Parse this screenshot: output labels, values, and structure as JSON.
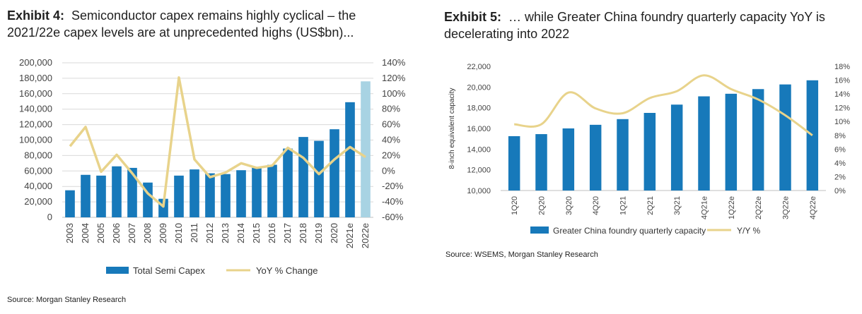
{
  "exhibit4": {
    "label": "Exhibit 4:",
    "title_line1": "Semiconductor capex remains highly cyclical – the",
    "title_line2": "2021/22e capex levels are at unprecedented highs (US$bn)...",
    "source": "Source: Morgan Stanley Research"
  },
  "exhibit5": {
    "label": "Exhibit 5:",
    "title_line1": "… while Greater China foundry quarterly capacity YoY is",
    "title_line2": "decelerating into 2022",
    "source": "Source: WSEMS, Morgan Stanley Research"
  },
  "colors": {
    "bar": "#1779ba",
    "bar_estimate": "#a8d3e3",
    "line": "#e8d38b",
    "grid": "#d9d9d9"
  },
  "chart_data": [
    {
      "type": "bar",
      "categories": [
        "2003",
        "2004",
        "2005",
        "2006",
        "2007",
        "2008",
        "2009",
        "2010",
        "2011",
        "2012",
        "2013",
        "2014",
        "2015",
        "2016",
        "2017",
        "2018",
        "2019",
        "2020",
        "2021e",
        "2022e"
      ],
      "series": [
        {
          "name": "Total Semi Capex",
          "axis": "left",
          "values": [
            35000,
            55000,
            54000,
            66000,
            64000,
            45000,
            24000,
            54000,
            62000,
            57000,
            56000,
            61000,
            64000,
            68000,
            89000,
            104000,
            99000,
            114000,
            149000,
            176000
          ]
        },
        {
          "name": "YoY % Change",
          "type": "line",
          "axis": "right",
          "values": [
            32,
            57,
            -1,
            21,
            -3,
            -29,
            -46,
            121,
            15,
            -8,
            -2,
            10,
            4,
            7,
            30,
            17,
            -4,
            15,
            31,
            18
          ]
        }
      ],
      "ylim_left": [
        0,
        200000
      ],
      "yticks_left": [
        "0",
        "20,000",
        "40,000",
        "60,000",
        "80,000",
        "100,000",
        "120,000",
        "140,000",
        "160,000",
        "180,000",
        "200,000"
      ],
      "ylim_right": [
        -60,
        140
      ],
      "yticks_right": [
        "-60%",
        "-40%",
        "-20%",
        "0%",
        "20%",
        "40%",
        "60%",
        "80%",
        "100%",
        "120%",
        "140%"
      ],
      "grid": true,
      "legend_position": "bottom"
    },
    {
      "type": "bar",
      "categories": [
        "1Q20",
        "2Q20",
        "3Q20",
        "4Q20",
        "1Q21",
        "2Q21",
        "3Q21",
        "4Q21e",
        "1Q22e",
        "2Q22e",
        "3Q22e",
        "4Q22e"
      ],
      "series": [
        {
          "name": "Greater China foundry quarterly capacity",
          "axis": "left",
          "values": [
            15250,
            15450,
            16000,
            16350,
            16900,
            17500,
            18300,
            19100,
            19350,
            19800,
            20250,
            20650
          ]
        },
        {
          "name": "Y/Y %",
          "type": "line",
          "axis": "right",
          "values": [
            9.6,
            9.6,
            14.2,
            11.9,
            11.2,
            13.4,
            14.4,
            16.7,
            14.7,
            13.2,
            10.9,
            8.0
          ]
        }
      ],
      "ylabel": "8-inch equivalent capacity",
      "ylim_left": [
        10000,
        22000
      ],
      "yticks_left": [
        "10,000",
        "12,000",
        "14,000",
        "16,000",
        "18,000",
        "20,000",
        "22,000"
      ],
      "ylim_right": [
        0,
        18
      ],
      "yticks_right": [
        "0%",
        "2%",
        "4%",
        "6%",
        "8%",
        "10%",
        "12%",
        "14%",
        "16%",
        "18%"
      ],
      "grid": false,
      "legend_position": "bottom"
    }
  ]
}
